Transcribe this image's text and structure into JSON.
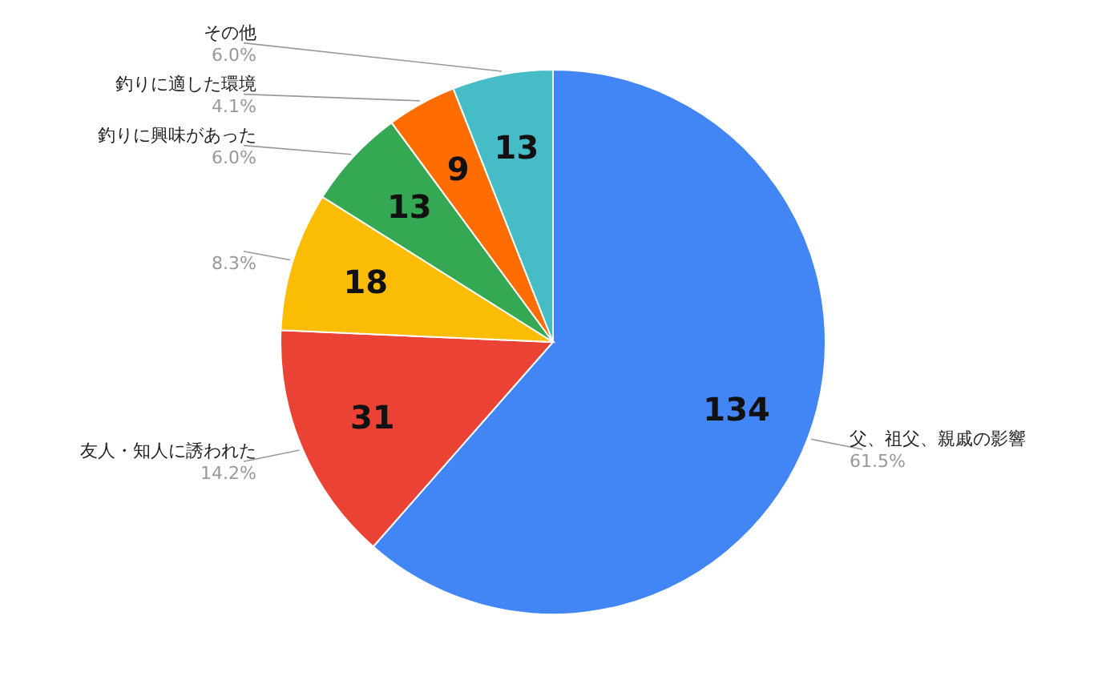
{
  "chart_data": {
    "type": "pie",
    "categories": [
      "父、祖父、親戚の影響",
      "友人・知人に誘われた",
      null,
      "釣りに興味があった",
      "釣りに適した環境",
      "その他"
    ],
    "values": [
      134,
      31,
      18,
      13,
      9,
      13
    ],
    "colors": [
      "#4285f4",
      "#ea4335",
      "#fbbc04",
      "#34a853",
      "#ff6d01",
      "#46bdc6"
    ],
    "data_labels": true,
    "annotations": [
      "61.5%",
      "14.2%",
      "8.3%",
      "6.0%",
      "4.1%",
      "6.0%"
    ]
  }
}
